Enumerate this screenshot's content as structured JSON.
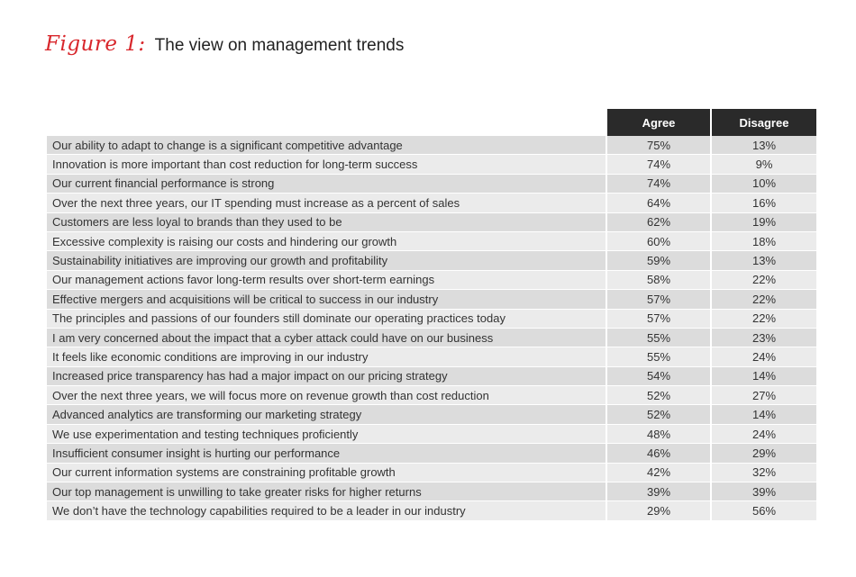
{
  "figure": {
    "label": "Figure 1:",
    "title": "The view on management trends"
  },
  "chart_data": {
    "type": "table",
    "columns": [
      "Agree",
      "Disagree"
    ],
    "rows": [
      {
        "statement": "Our ability to adapt to change is a significant competitive advantage",
        "agree": "75%",
        "disagree": "13%"
      },
      {
        "statement": "Innovation is more important than cost reduction for long-term success",
        "agree": "74%",
        "disagree": "9%"
      },
      {
        "statement": "Our current financial performance is strong",
        "agree": "74%",
        "disagree": "10%"
      },
      {
        "statement": "Over the next three years, our IT spending must increase as a percent of sales",
        "agree": "64%",
        "disagree": "16%"
      },
      {
        "statement": "Customers are less loyal to brands than they used to be",
        "agree": "62%",
        "disagree": "19%"
      },
      {
        "statement": "Excessive complexity is raising our costs and hindering our growth",
        "agree": "60%",
        "disagree": "18%"
      },
      {
        "statement": "Sustainability initiatives are improving our growth and profitability",
        "agree": "59%",
        "disagree": "13%"
      },
      {
        "statement": "Our management actions favor long-term results over short-term earnings",
        "agree": "58%",
        "disagree": "22%"
      },
      {
        "statement": "Effective mergers and acquisitions will be critical to success in our industry",
        "agree": "57%",
        "disagree": "22%"
      },
      {
        "statement": "The principles and passions of our founders still dominate our operating practices today",
        "agree": "57%",
        "disagree": "22%"
      },
      {
        "statement": "I am very concerned about the impact that a cyber attack could have on our business",
        "agree": "55%",
        "disagree": "23%"
      },
      {
        "statement": "It feels like economic conditions are improving in our industry",
        "agree": "55%",
        "disagree": "24%"
      },
      {
        "statement": "Increased price transparency has had a major impact on our pricing strategy",
        "agree": "54%",
        "disagree": "14%"
      },
      {
        "statement": "Over the next three years, we will focus more on revenue growth than cost reduction",
        "agree": "52%",
        "disagree": "27%"
      },
      {
        "statement": "Advanced analytics are transforming our marketing strategy",
        "agree": "52%",
        "disagree": "14%"
      },
      {
        "statement": "We use experimentation and testing techniques proficiently",
        "agree": "48%",
        "disagree": "24%"
      },
      {
        "statement": "Insufficient consumer insight is hurting our performance",
        "agree": "46%",
        "disagree": "29%"
      },
      {
        "statement": "Our current information systems are constraining profitable growth",
        "agree": "42%",
        "disagree": "32%"
      },
      {
        "statement": "Our top management is unwilling to take greater risks for higher returns",
        "agree": "39%",
        "disagree": "39%"
      },
      {
        "statement": "We don’t have the technology capabilities required to be a leader in our industry",
        "agree": "29%",
        "disagree": "56%"
      }
    ]
  }
}
